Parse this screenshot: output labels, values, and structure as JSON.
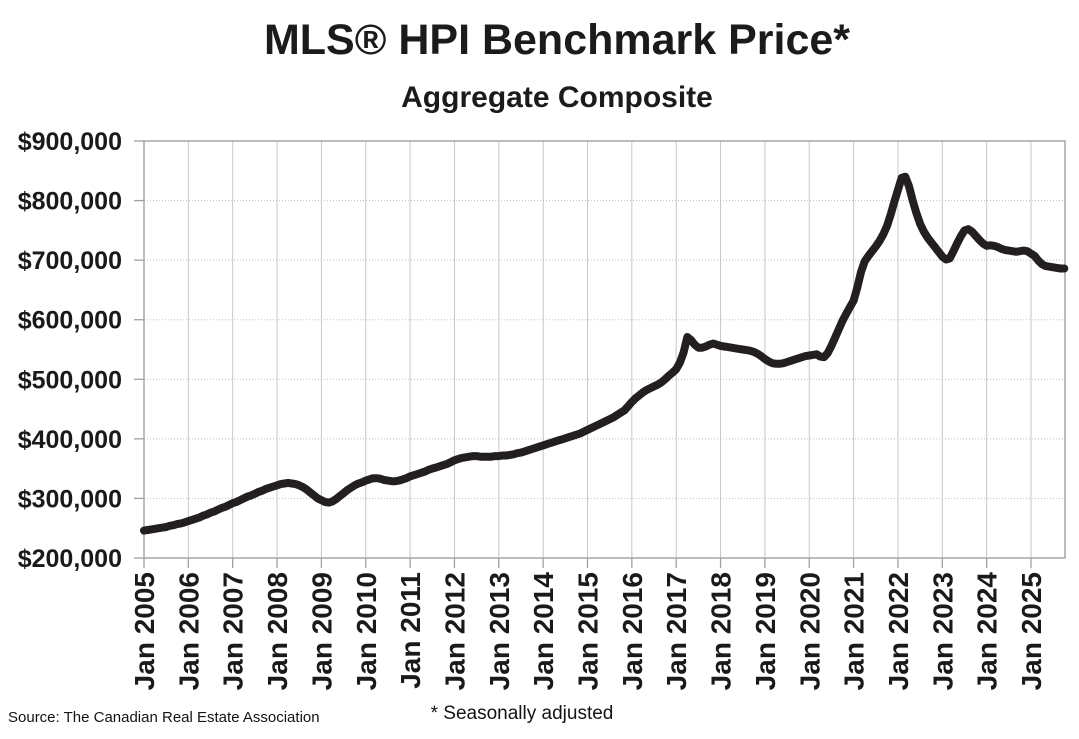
{
  "header": {
    "title": "MLS® HPI Benchmark Price*",
    "subtitle": "Aggregate Composite"
  },
  "footer": {
    "source": "Source: The Canadian Real Estate Association",
    "footnote": "* Seasonally adjusted"
  },
  "chart_data": {
    "type": "line",
    "title": "MLS® HPI Benchmark Price*",
    "subtitle": "Aggregate Composite",
    "grid": true,
    "legend_position": "none",
    "ylim": [
      200000,
      900000
    ],
    "y_tick_interval": 100000,
    "y_tick_labels": [
      "$900,000",
      "$800,000",
      "$700,000",
      "$600,000",
      "$500,000",
      "$400,000",
      "$300,000",
      "$200,000"
    ],
    "x_tick_labels": [
      "Jan 2005",
      "Jan 2006",
      "Jan 2007",
      "Jan 2008",
      "Jan 2009",
      "Jan 2010",
      "Jan 2011",
      "Jan 2012",
      "Jan 2013",
      "Jan 2014",
      "Jan 2015",
      "Jan 2016",
      "Jan 2017",
      "Jan 2018",
      "Jan 2019",
      "Jan 2020",
      "Jan 2021",
      "Jan 2022",
      "Jan 2023",
      "Jan 2024",
      "Jan 2025"
    ],
    "x_frequency": "monthly",
    "x_start_label": "Jan 2005",
    "series": [
      {
        "name": "MLS HPI Aggregate Composite benchmark price (seasonally adjusted)",
        "values": [
          246000,
          247000,
          248000,
          249000,
          250000,
          251000,
          252000,
          254000,
          255000,
          257000,
          258000,
          260000,
          262000,
          264000,
          266000,
          268000,
          271000,
          273000,
          276000,
          278000,
          281000,
          284000,
          286000,
          289000,
          292000,
          294000,
          297000,
          300000,
          303000,
          305000,
          308000,
          311000,
          313000,
          316000,
          318000,
          320000,
          322000,
          324000,
          325000,
          326000,
          325000,
          324000,
          322000,
          319000,
          315000,
          310000,
          305000,
          300000,
          297000,
          294000,
          293000,
          295000,
          299000,
          304000,
          309000,
          314000,
          318000,
          322000,
          325000,
          327000,
          330000,
          332000,
          334000,
          334000,
          333000,
          331000,
          330000,
          329000,
          329000,
          330000,
          332000,
          334000,
          337000,
          339000,
          341000,
          343000,
          345000,
          348000,
          350000,
          352000,
          354000,
          356000,
          358000,
          361000,
          364000,
          366000,
          368000,
          369000,
          370000,
          371000,
          371000,
          370000,
          370000,
          370000,
          370000,
          371000,
          371000,
          372000,
          372000,
          373000,
          374000,
          376000,
          377000,
          379000,
          381000,
          383000,
          385000,
          387000,
          389000,
          391000,
          393000,
          395000,
          397000,
          399000,
          401000,
          403000,
          405000,
          407000,
          409000,
          412000,
          415000,
          418000,
          421000,
          424000,
          427000,
          430000,
          433000,
          436000,
          440000,
          444000,
          448000,
          455000,
          462000,
          468000,
          473000,
          478000,
          482000,
          485000,
          488000,
          491000,
          495000,
          500000,
          506000,
          511000,
          517000,
          528000,
          545000,
          571000,
          566000,
          558000,
          553000,
          553000,
          555000,
          558000,
          560000,
          558000,
          556000,
          555000,
          554000,
          553000,
          552000,
          551000,
          550000,
          549000,
          548000,
          546000,
          543000,
          539000,
          534000,
          530000,
          527000,
          526000,
          526000,
          527000,
          529000,
          531000,
          533000,
          535000,
          537000,
          539000,
          540000,
          541000,
          542000,
          538000,
          537000,
          544000,
          556000,
          570000,
          584000,
          598000,
          610000,
          621000,
          632000,
          654000,
          680000,
          698000,
          707000,
          715000,
          723000,
          732000,
          743000,
          757000,
          776000,
          798000,
          818000,
          838000,
          840000,
          824000,
          800000,
          779000,
          761000,
          748000,
          738000,
          730000,
          722000,
          714000,
          706000,
          701000,
          703000,
          715000,
          728000,
          740000,
          750000,
          752000,
          748000,
          741000,
          734000,
          728000,
          724000,
          725000,
          724000,
          722000,
          719000,
          717000,
          716000,
          715000,
          714000,
          715000,
          716000,
          715000,
          711000,
          707000,
          699000,
          693000,
          690000,
          689000,
          688000,
          687000,
          686000,
          686000
        ]
      }
    ],
    "colors": {
      "line": "#231f20",
      "grid": "#c7c7c7",
      "grid_dotted": "#bfbfbf",
      "border": "#a0a0a0",
      "text": "#1a1a1a"
    }
  }
}
